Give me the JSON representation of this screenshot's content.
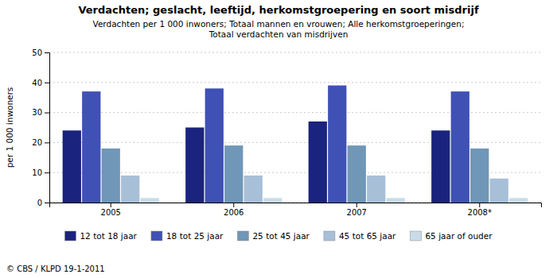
{
  "chart_data": {
    "type": "bar",
    "title": "Verdachten; geslacht, leeftijd, herkomstgroepering en soort misdrijf",
    "subtitle": [
      "Verdachten per 1 000 inwoners;  Totaal mannen en vrouwen;  Alle herkomstgroeperingen;",
      "Totaal verdachten van misdrijven"
    ],
    "ylabel": "per 1 000 inwoners",
    "annotations": [
      "© CBS / KLPD 19-1-2011"
    ],
    "categories": [
      "2005",
      "2006",
      "2007",
      "2008*"
    ],
    "series": [
      {
        "name": "12 tot 18 jaar",
        "color": "#1a237e",
        "values": [
          24,
          25,
          27,
          24
        ]
      },
      {
        "name": "18 tot 25 jaar",
        "color": "#3f51b5",
        "values": [
          37,
          38,
          39,
          37
        ]
      },
      {
        "name": "25 tot 45 jaar",
        "color": "#7096b8",
        "values": [
          18,
          19,
          19,
          18
        ]
      },
      {
        "name": "45 tot 65 jaar",
        "color": "#a8bfd8",
        "values": [
          9,
          9,
          9,
          8
        ]
      },
      {
        "name": "65 jaar of ouder",
        "color": "#c8dce8",
        "values": [
          1.5,
          1.5,
          1.5,
          1.5
        ]
      }
    ],
    "ylim": [
      0,
      50
    ],
    "yticks": [
      0,
      10,
      20,
      30,
      40,
      50
    ],
    "grid": true,
    "legend": "bottom"
  }
}
